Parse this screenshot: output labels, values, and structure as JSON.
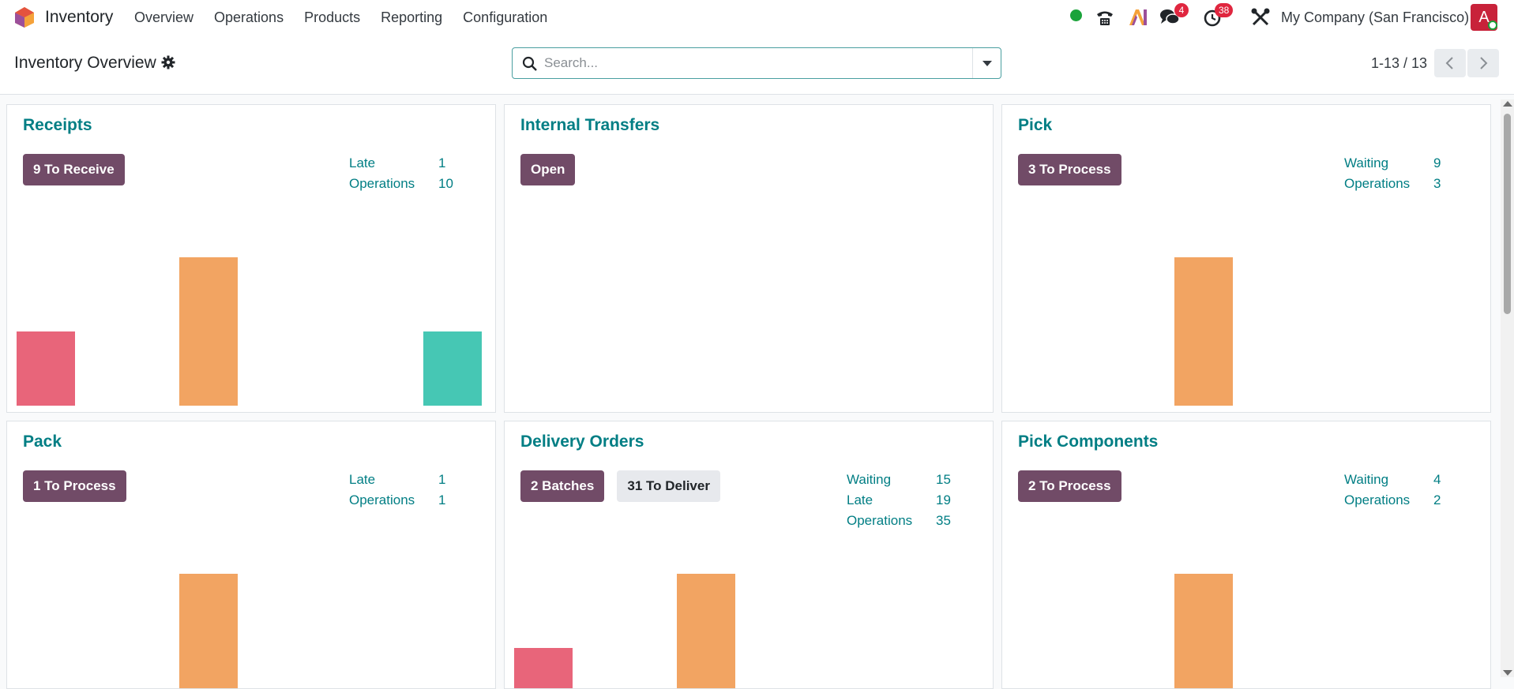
{
  "app": {
    "name": "Inventory",
    "logo_icon": "odoo-app-icon"
  },
  "menu": [
    "Overview",
    "Operations",
    "Products",
    "Reporting",
    "Configuration"
  ],
  "systray": {
    "status_color": "#1aa33a",
    "messages_badge": "4",
    "activities_badge": "38",
    "company": "My Company (San Francisco)",
    "avatar_initial": "A"
  },
  "control": {
    "title": "Inventory Overview",
    "search_placeholder": "Search...",
    "pager": "1-13 / 13"
  },
  "colors": {
    "title": "#017e84",
    "primary_button": "#714b67",
    "late": "#e8657a",
    "past": "#f2a462",
    "future": "#46c7b4"
  },
  "cards": [
    {
      "title": "Receipts",
      "buttons": [
        {
          "label": "9 To Receive",
          "style": "primary"
        }
      ],
      "stats": [
        {
          "label": "Late",
          "value": "1"
        },
        {
          "label": "Operations",
          "value": "10"
        }
      ],
      "chart": [
        1,
        2,
        0,
        0,
        0,
        1
      ]
    },
    {
      "title": "Internal Transfers",
      "buttons": [
        {
          "label": "Open",
          "style": "primary"
        }
      ],
      "stats": [],
      "chart": []
    },
    {
      "title": "Pick",
      "buttons": [
        {
          "label": "3 To Process",
          "style": "primary"
        }
      ],
      "stats": [
        {
          "label": "Waiting",
          "value": "9"
        },
        {
          "label": "Operations",
          "value": "3"
        }
      ],
      "chart": [
        0,
        2,
        0,
        0,
        0,
        0
      ]
    },
    {
      "title": "Pack",
      "buttons": [
        {
          "label": "1 To Process",
          "style": "primary"
        }
      ],
      "stats": [
        {
          "label": "Late",
          "value": "1"
        },
        {
          "label": "Operations",
          "value": "1"
        }
      ],
      "chart": [
        0,
        2,
        0,
        0,
        0,
        0
      ]
    },
    {
      "title": "Delivery Orders",
      "buttons": [
        {
          "label": "2 Batches",
          "style": "primary"
        },
        {
          "label": "31 To Deliver",
          "style": "secondary"
        }
      ],
      "stats": [
        {
          "label": "Waiting",
          "value": "15"
        },
        {
          "label": "Late",
          "value": "19"
        },
        {
          "label": "Operations",
          "value": "35"
        }
      ],
      "chart": [
        1,
        2,
        0,
        0,
        0,
        0
      ]
    },
    {
      "title": "Pick Components",
      "buttons": [
        {
          "label": "2 To Process",
          "style": "primary"
        }
      ],
      "stats": [
        {
          "label": "Waiting",
          "value": "4"
        },
        {
          "label": "Operations",
          "value": "2"
        }
      ],
      "chart": [
        0,
        2,
        0,
        0,
        0,
        0
      ]
    }
  ]
}
